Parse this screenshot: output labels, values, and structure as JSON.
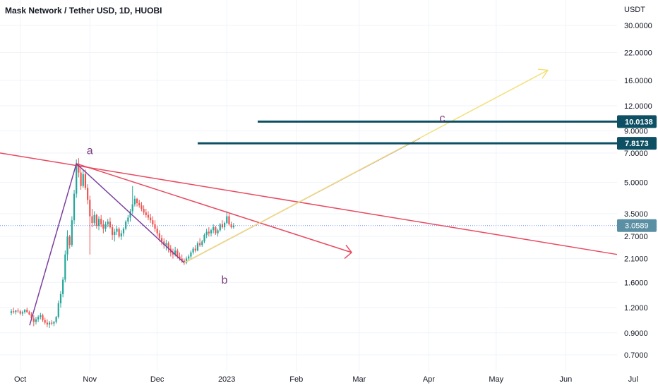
{
  "title": "Mask Network / Tether USD, 1D, HUOBI",
  "chart_data": {
    "type": "candlestick",
    "title": "Mask Network / Tether USD, 1D, HUOBI",
    "yscale": "log",
    "ylabel": "USDT",
    "ylim": [
      0.62,
      40
    ],
    "y_ticks": [
      "30.0000",
      "22.0000",
      "16.0000",
      "12.0000",
      "9.0000",
      "7.0000",
      "5.0000",
      "3.5000",
      "2.7000",
      "2.1000",
      "1.6000",
      "1.2000",
      "0.9000",
      "0.7000"
    ],
    "x_ticks": [
      "Oct",
      "Nov",
      "Dec",
      "2023",
      "Feb",
      "Mar",
      "Apr",
      "May",
      "Jun",
      "Jul"
    ],
    "x_tick_dates": [
      "2022-10-01",
      "2022-11-01",
      "2022-12-01",
      "2023-01-01",
      "2023-02-01",
      "2023-03-01",
      "2023-04-01",
      "2023-05-01",
      "2023-06-01",
      "2023-07-01"
    ],
    "colors": {
      "up": "#26a69a",
      "down": "#ef5350",
      "level": "#0d4f63",
      "trend": "#e84a5f",
      "wave": "#7b3fa0",
      "channel": "#f3e07a"
    },
    "price_levels": [
      {
        "label": "10.0138",
        "value": 10.0138
      },
      {
        "label": "7.8173",
        "value": 7.8173
      }
    ],
    "last_price": {
      "label": "3.0589",
      "value": 3.0589
    },
    "wave_labels": [
      {
        "text": "a",
        "date": "2022-11-01",
        "value": 6.9
      },
      {
        "text": "b",
        "date": "2022-12-31",
        "value": 1.58
      },
      {
        "text": "c",
        "date": "2023-04-07",
        "value": 10.0
      }
    ],
    "series": {
      "dates_start": "2022-09-22",
      "ohlc": [
        [
          1.13,
          1.18,
          1.1,
          1.15
        ],
        [
          1.15,
          1.2,
          1.12,
          1.14
        ],
        [
          1.14,
          1.17,
          1.11,
          1.16
        ],
        [
          1.16,
          1.19,
          1.13,
          1.15
        ],
        [
          1.15,
          1.17,
          1.1,
          1.12
        ],
        [
          1.12,
          1.16,
          1.09,
          1.14
        ],
        [
          1.14,
          1.18,
          1.12,
          1.17
        ],
        [
          1.17,
          1.2,
          1.13,
          1.14
        ],
        [
          1.14,
          1.16,
          1.1,
          1.11
        ],
        [
          1.11,
          1.14,
          1.04,
          1.06
        ],
        [
          1.06,
          1.1,
          0.97,
          1.02
        ],
        [
          1.02,
          1.08,
          0.99,
          1.05
        ],
        [
          1.05,
          1.1,
          1.02,
          1.08
        ],
        [
          1.08,
          1.13,
          1.05,
          1.1
        ],
        [
          1.1,
          1.12,
          1.02,
          1.04
        ],
        [
          1.04,
          1.07,
          0.99,
          1.01
        ],
        [
          1.01,
          1.05,
          0.96,
          0.99
        ],
        [
          0.99,
          1.03,
          0.95,
          1.01
        ],
        [
          1.01,
          1.04,
          0.98,
          1.0
        ],
        [
          1.0,
          1.03,
          0.97,
          1.02
        ],
        [
          1.02,
          1.09,
          1.0,
          1.08
        ],
        [
          1.08,
          1.3,
          1.06,
          1.26
        ],
        [
          1.26,
          1.45,
          1.2,
          1.4
        ],
        [
          1.4,
          1.7,
          1.35,
          1.65
        ],
        [
          1.65,
          2.3,
          1.6,
          2.2
        ],
        [
          2.2,
          2.9,
          2.05,
          2.7
        ],
        [
          2.7,
          2.75,
          2.35,
          2.45
        ],
        [
          2.45,
          3.4,
          2.4,
          3.25
        ],
        [
          3.25,
          4.6,
          3.1,
          4.4
        ],
        [
          4.4,
          6.5,
          4.2,
          6.2
        ],
        [
          6.2,
          6.6,
          5.3,
          5.6
        ],
        [
          5.6,
          5.9,
          4.6,
          4.8
        ],
        [
          4.8,
          5.8,
          4.7,
          5.5
        ],
        [
          5.5,
          5.8,
          4.6,
          4.7
        ],
        [
          4.7,
          4.9,
          3.9,
          4.1
        ],
        [
          4.1,
          4.3,
          2.2,
          3.4
        ],
        [
          3.4,
          3.7,
          3.0,
          3.15
        ],
        [
          3.15,
          3.6,
          3.05,
          3.45
        ],
        [
          3.45,
          3.5,
          2.95,
          3.05
        ],
        [
          3.05,
          3.4,
          2.9,
          3.3
        ],
        [
          3.3,
          3.45,
          3.0,
          3.1
        ],
        [
          3.1,
          3.25,
          2.8,
          2.95
        ],
        [
          2.95,
          3.2,
          2.85,
          3.1
        ],
        [
          3.1,
          3.3,
          3.0,
          3.2
        ],
        [
          3.2,
          3.35,
          2.95,
          3.0
        ],
        [
          3.0,
          3.1,
          2.6,
          2.75
        ],
        [
          2.75,
          2.95,
          2.55,
          2.85
        ],
        [
          2.85,
          3.05,
          2.75,
          2.95
        ],
        [
          2.95,
          3.0,
          2.65,
          2.7
        ],
        [
          2.7,
          2.9,
          2.6,
          2.8
        ],
        [
          2.8,
          3.0,
          2.7,
          2.95
        ],
        [
          2.95,
          3.25,
          2.9,
          3.2
        ],
        [
          3.2,
          3.45,
          3.1,
          3.35
        ],
        [
          3.35,
          3.7,
          3.2,
          3.6
        ],
        [
          3.6,
          4.8,
          3.5,
          3.9
        ],
        [
          3.9,
          4.3,
          3.8,
          4.15
        ],
        [
          4.15,
          4.2,
          3.8,
          3.95
        ],
        [
          3.95,
          4.1,
          3.75,
          3.85
        ],
        [
          3.85,
          4.0,
          3.6,
          3.7
        ],
        [
          3.7,
          3.85,
          3.45,
          3.55
        ],
        [
          3.55,
          3.7,
          3.35,
          3.45
        ],
        [
          3.45,
          3.6,
          3.25,
          3.35
        ],
        [
          3.35,
          3.5,
          3.15,
          3.25
        ],
        [
          3.25,
          3.4,
          3.0,
          3.1
        ],
        [
          3.1,
          3.25,
          2.85,
          2.95
        ],
        [
          2.95,
          3.05,
          2.7,
          2.8
        ],
        [
          2.8,
          2.9,
          2.55,
          2.65
        ],
        [
          2.65,
          2.75,
          2.45,
          2.55
        ],
        [
          2.55,
          2.65,
          2.35,
          2.45
        ],
        [
          2.45,
          2.6,
          2.3,
          2.5
        ],
        [
          2.5,
          2.55,
          2.25,
          2.35
        ],
        [
          2.35,
          2.45,
          2.15,
          2.25
        ],
        [
          2.25,
          2.35,
          2.1,
          2.2
        ],
        [
          2.2,
          2.4,
          2.15,
          2.3
        ],
        [
          2.3,
          2.35,
          2.1,
          2.15
        ],
        [
          2.15,
          2.25,
          2.05,
          2.1
        ],
        [
          2.1,
          2.2,
          2.0,
          2.05
        ],
        [
          2.05,
          2.1,
          1.95,
          2.0
        ],
        [
          2.0,
          2.15,
          1.97,
          2.1
        ],
        [
          2.1,
          2.2,
          2.05,
          2.15
        ],
        [
          2.15,
          2.3,
          2.1,
          2.25
        ],
        [
          2.25,
          2.4,
          2.2,
          2.35
        ],
        [
          2.35,
          2.45,
          2.25,
          2.3
        ],
        [
          2.3,
          2.55,
          2.28,
          2.5
        ],
        [
          2.5,
          2.65,
          2.4,
          2.45
        ],
        [
          2.45,
          2.6,
          2.4,
          2.55
        ],
        [
          2.55,
          2.8,
          2.5,
          2.75
        ],
        [
          2.75,
          2.95,
          2.65,
          2.85
        ],
        [
          2.85,
          3.0,
          2.7,
          2.8
        ],
        [
          2.8,
          2.95,
          2.7,
          2.9
        ],
        [
          2.9,
          3.1,
          2.8,
          3.0
        ],
        [
          3.0,
          3.05,
          2.75,
          2.8
        ],
        [
          2.8,
          2.95,
          2.7,
          2.9
        ],
        [
          2.9,
          3.15,
          2.85,
          3.1
        ],
        [
          3.1,
          3.25,
          2.95,
          3.0
        ],
        [
          3.0,
          3.2,
          2.9,
          3.15
        ],
        [
          3.15,
          3.6,
          3.1,
          3.4
        ],
        [
          3.4,
          3.5,
          3.05,
          3.1
        ],
        [
          3.1,
          3.2,
          2.95,
          3.0
        ],
        [
          3.0,
          3.15,
          2.95,
          3.06
        ]
      ]
    }
  }
}
